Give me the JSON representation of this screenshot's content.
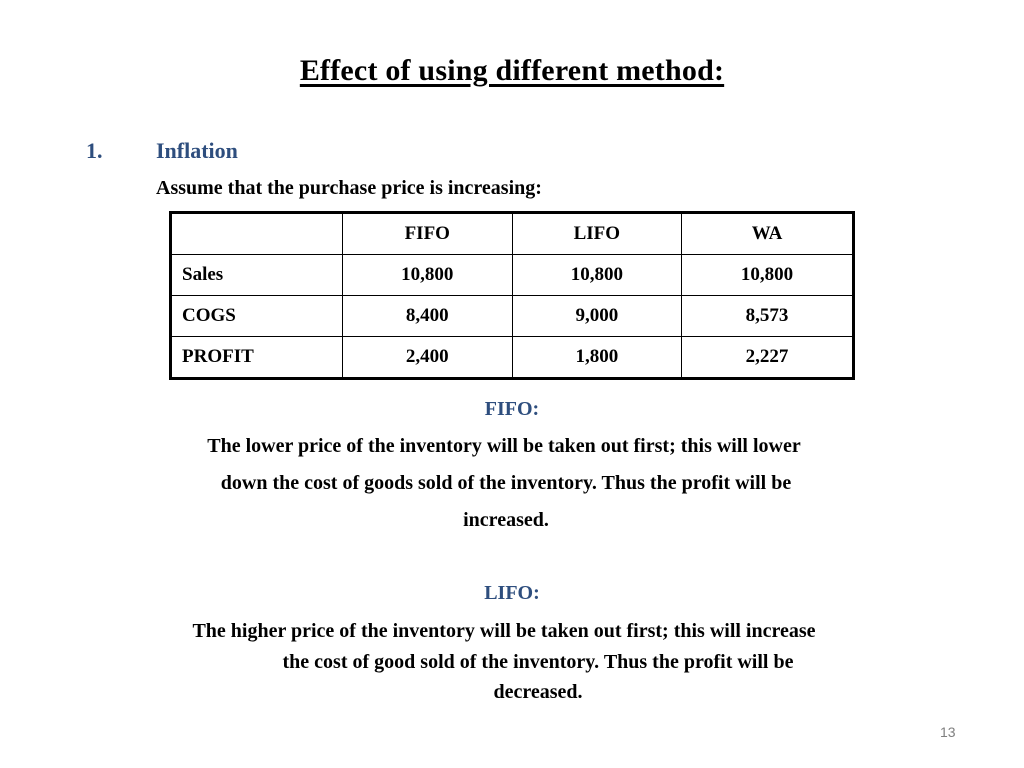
{
  "slide": {
    "title": "Effect of  using different method:",
    "list_number": "1.",
    "list_label": "Inflation",
    "assumption": "Assume that the purchase price is increasing:",
    "page_number": "13"
  },
  "table": {
    "headers": [
      "",
      "FIFO",
      "LIFO",
      "WA"
    ],
    "rows": [
      {
        "label": "Sales",
        "values": [
          "10,800",
          "10,800",
          "10,800"
        ]
      },
      {
        "label": "COGS",
        "values": [
          "8,400",
          "9,000",
          "8,573"
        ]
      },
      {
        "label": "PROFIT",
        "values": [
          "2,400",
          "1,800",
          "2,227"
        ]
      }
    ]
  },
  "fifo": {
    "heading": "FIFO:",
    "lines": [
      "The lower price of  the inventory will be taken out first; this will lower",
      "down the cost of  goods sold of  the inventory.  Thus the profit will be",
      "increased."
    ]
  },
  "lifo": {
    "heading": "LIFO:",
    "lines": [
      "The higher price of  the inventory will be taken out first; this will increase",
      "the cost of  good sold of  the inventory.  Thus the profit will be",
      "decreased."
    ]
  }
}
